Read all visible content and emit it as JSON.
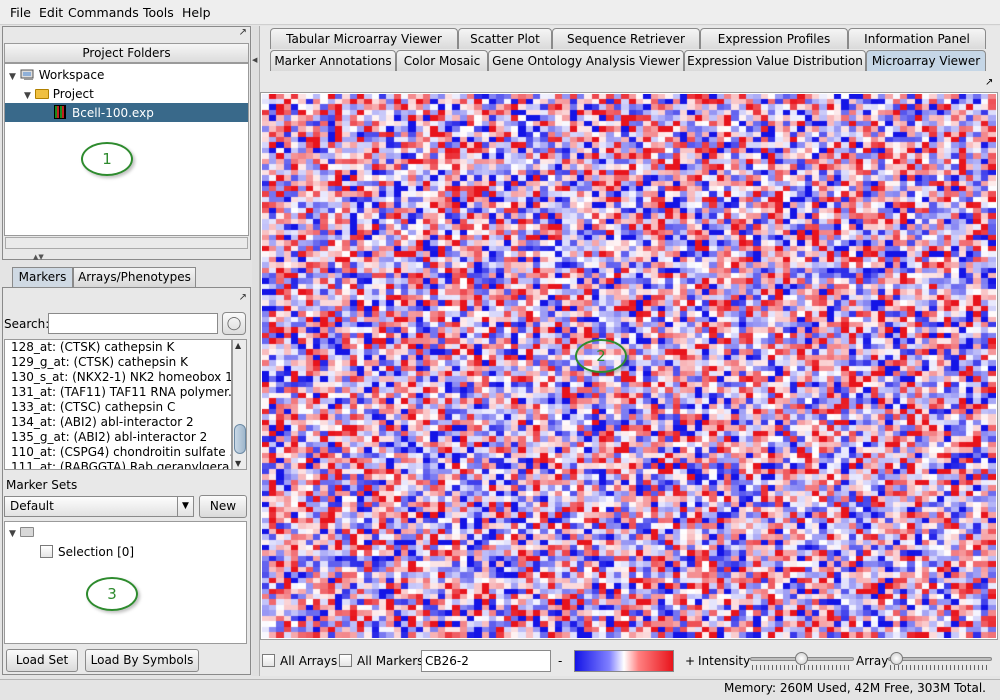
{
  "menubar": {
    "items": [
      "File",
      "Edit",
      "Commands",
      "Tools",
      "Help"
    ]
  },
  "project_panel": {
    "header": "Project Folders",
    "tree": {
      "workspace": "Workspace",
      "project": "Project",
      "file": "Bcell-100.exp"
    },
    "callout": "1"
  },
  "left_tabs": [
    "Markers",
    "Arrays/Phenotypes"
  ],
  "markers": {
    "search_label": "Search:",
    "search_value": "",
    "items": [
      "128_at: (CTSK) cathepsin K",
      "129_g_at: (CTSK) cathepsin K",
      "130_s_at: (NKX2-1) NK2 homeobox 1",
      "131_at: (TAF11) TAF11 RNA polymer...",
      "133_at: (CTSC) cathepsin C",
      "134_at: (ABI2) abl-interactor 2",
      "135_g_at: (ABI2) abl-interactor 2",
      "110_at: (CSPG4) chondroitin sulfate ...",
      "111_at: (RABGGTA) Rab geranylgera..."
    ],
    "marker_sets_label": "Marker Sets",
    "marker_sets_value": "Default",
    "new_button": "New",
    "selection_item": "Selection [0]",
    "callout": "3",
    "load_set_button": "Load Set",
    "load_symbols_button": "Load By Symbols"
  },
  "right_tabs": {
    "row1": [
      "Tabular Microarray Viewer",
      "Scatter Plot",
      "Sequence Retriever",
      "Expression Profiles",
      "Information Panel"
    ],
    "row2": [
      "Marker Annotations",
      "Color Mosaic",
      "Gene Ontology Analysis Viewer",
      "Expression Value Distribution",
      "Microarray Viewer"
    ],
    "active": "Microarray Viewer"
  },
  "heatmap": {
    "callout": "2",
    "colors": {
      "high": "#e8141c",
      "mid": "#ffffff",
      "low": "#1414e6"
    }
  },
  "bottom": {
    "all_arrays": "All Arrays",
    "all_markers": "All Markers",
    "array_name": "CB26-2",
    "minus": "-",
    "plus": "+",
    "intensity": "Intensity",
    "array_label": "Array"
  },
  "status": {
    "memory": "Memory: 260M Used, 42M Free, 303M Total."
  }
}
